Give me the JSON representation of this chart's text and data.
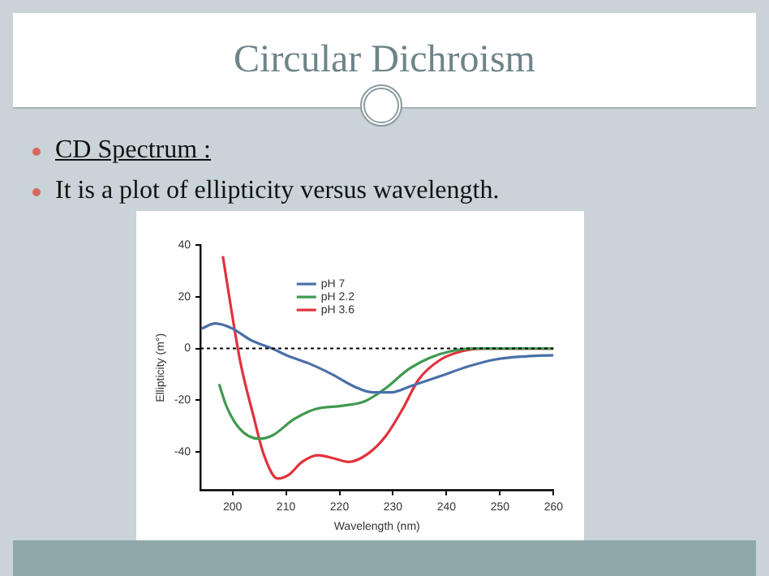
{
  "chart_data": {
    "type": "line",
    "title": "Circular Dichroism",
    "annotations": [
      "CD Spectrum :",
      "It is a plot of ellipticity versus wavelength."
    ],
    "xlabel": "Wavelength (nm)",
    "ylabel": "Ellipticity (m°)",
    "xlim": [
      194,
      260
    ],
    "xticks": [
      200,
      210,
      220,
      230,
      240,
      250,
      260
    ],
    "ylim": [
      -55,
      40
    ],
    "yticks": [
      -40,
      -20,
      0,
      20,
      40
    ],
    "grid": false,
    "legend": "top",
    "marker": "none",
    "ref_lines": [
      {
        "axis": "y",
        "value": 0,
        "color": "#000000",
        "line_style": "dotted"
      }
    ],
    "series": [
      {
        "name": "pH 7",
        "color": "#4a6fa8",
        "x": [
          194.2,
          196.8,
          200,
          203.4,
          207.4,
          210.5,
          214.5,
          218.6,
          222.6,
          226.2,
          229.7,
          233.3,
          238.9,
          244,
          249,
          255.1,
          260
        ],
        "values": [
          7.7,
          9.7,
          7.7,
          3.3,
          0,
          -3,
          -6,
          -10,
          -14.6,
          -17,
          -17,
          -14.6,
          -10.7,
          -7,
          -4.3,
          -3,
          -2.6
        ]
      },
      {
        "name": "pH 2.2",
        "color": "#3f9a4f",
        "x": [
          197.5,
          198.8,
          201.3,
          204.9,
          207.4,
          211.5,
          215.5,
          220.6,
          224.7,
          228.7,
          232.8,
          236.9,
          240.9,
          245,
          260
        ],
        "values": [
          -13.8,
          -22,
          -31,
          -35,
          -33.8,
          -27.4,
          -23.5,
          -22.2,
          -20.5,
          -15.3,
          -8.2,
          -3.6,
          -1,
          0,
          0
        ]
      },
      {
        "name": "pH 3.6",
        "color": "#e0323c",
        "x": [
          198.2,
          199.8,
          201.5,
          203.9,
          205.9,
          208.4,
          210.5,
          213,
          216,
          219.1,
          221.6,
          225.2,
          228.7,
          231.8,
          234.8,
          238.9,
          243,
          247,
          260
        ],
        "values": [
          35.8,
          14.8,
          -5.6,
          -26,
          -41.4,
          -50.4,
          -49,
          -44,
          -41.4,
          -42.7,
          -44,
          -41,
          -33.8,
          -23.5,
          -12,
          -4.3,
          -1,
          0,
          0
        ]
      }
    ]
  }
}
